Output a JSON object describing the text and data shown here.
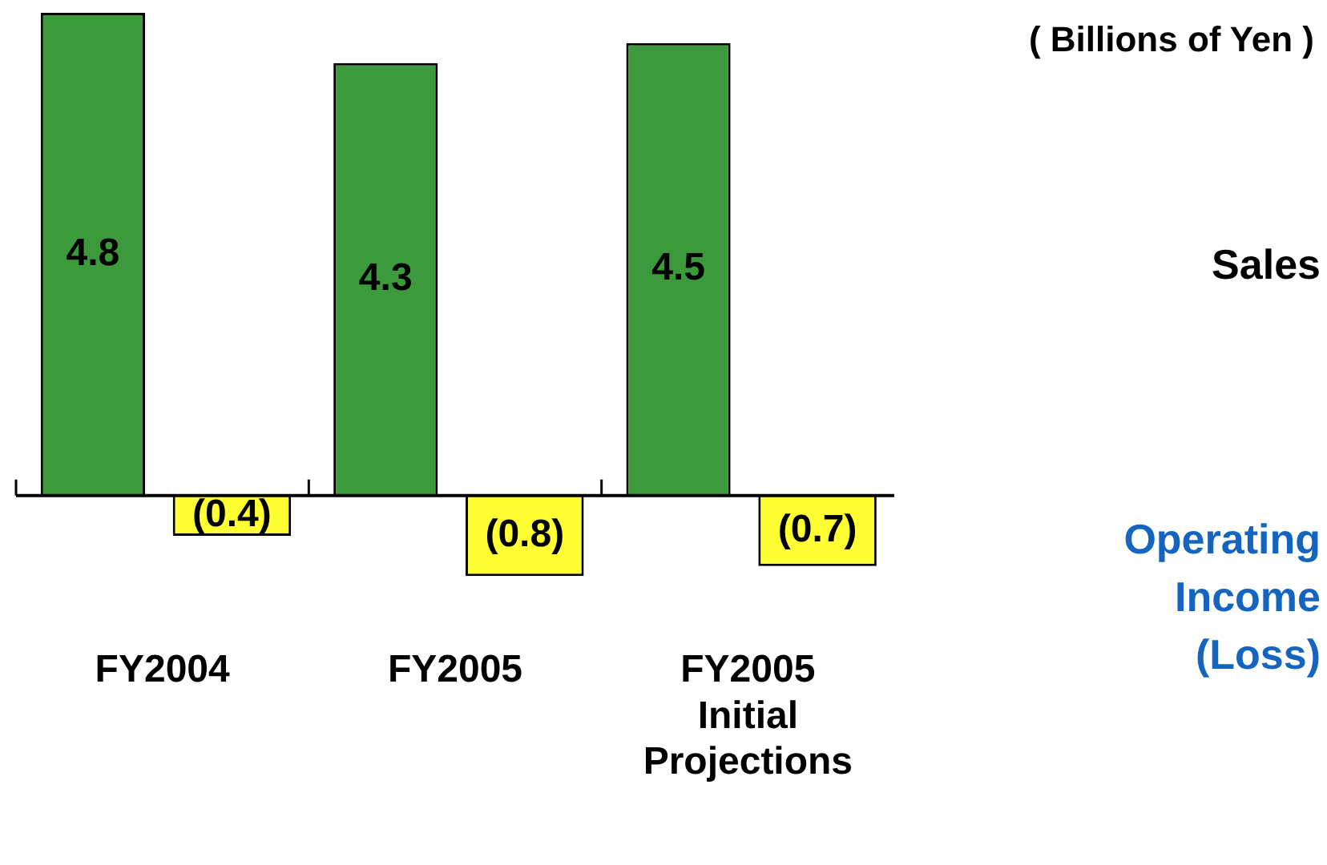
{
  "chart_data": {
    "type": "bar",
    "categories": [
      "FY2004",
      "FY2005",
      "FY2005 Initial Projections"
    ],
    "series": [
      {
        "name": "Sales",
        "color": "#3c9a3c",
        "values": [
          4.8,
          4.3,
          4.5
        ],
        "value_labels": [
          "4.8",
          "4.3",
          "4.5"
        ]
      },
      {
        "name": "Operating Income (Loss)",
        "color": "#ffff33",
        "values": [
          -0.4,
          -0.8,
          -0.7
        ],
        "value_labels": [
          "(0.4)",
          "(0.8)",
          "(0.7)"
        ]
      }
    ],
    "legend": false,
    "grid": false,
    "annotations": [
      "( Billions of Yen )"
    ]
  }
}
